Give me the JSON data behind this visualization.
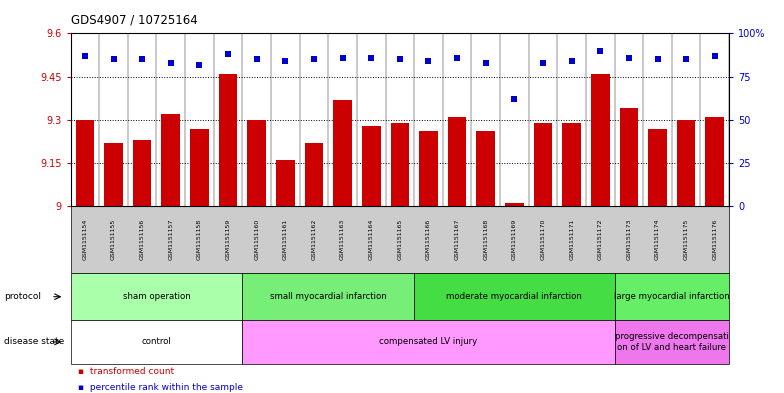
{
  "title": "GDS4907 / 10725164",
  "samples": [
    "GSM1151154",
    "GSM1151155",
    "GSM1151156",
    "GSM1151157",
    "GSM1151158",
    "GSM1151159",
    "GSM1151160",
    "GSM1151161",
    "GSM1151162",
    "GSM1151163",
    "GSM1151164",
    "GSM1151165",
    "GSM1151166",
    "GSM1151167",
    "GSM1151168",
    "GSM1151169",
    "GSM1151170",
    "GSM1151171",
    "GSM1151172",
    "GSM1151173",
    "GSM1151174",
    "GSM1151175",
    "GSM1151176"
  ],
  "bar_values": [
    9.3,
    9.22,
    9.23,
    9.32,
    9.27,
    9.46,
    9.3,
    9.16,
    9.22,
    9.37,
    9.28,
    9.29,
    9.26,
    9.31,
    9.26,
    9.01,
    9.29,
    9.29,
    9.46,
    9.34,
    9.27,
    9.3,
    9.31
  ],
  "percentile_values": [
    87,
    85,
    85,
    83,
    82,
    88,
    85,
    84,
    85,
    86,
    86,
    85,
    84,
    86,
    83,
    62,
    83,
    84,
    90,
    86,
    85,
    85,
    87
  ],
  "bar_color": "#cc0000",
  "percentile_color": "#0000cc",
  "ylim_left": [
    9.0,
    9.6
  ],
  "ylim_right": [
    0,
    100
  ],
  "yticks_left": [
    9.0,
    9.15,
    9.3,
    9.45,
    9.6
  ],
  "yticks_right": [
    0,
    25,
    50,
    75,
    100
  ],
  "ytick_labels_left": [
    "9",
    "9.15",
    "9.3",
    "9.45",
    "9.6"
  ],
  "ytick_labels_right": [
    "0",
    "25",
    "50",
    "75",
    "100%"
  ],
  "dotted_lines": [
    9.15,
    9.3,
    9.45
  ],
  "protocol_spans": [
    {
      "label": "sham operation",
      "start": 0,
      "end": 5,
      "color": "#aaffaa"
    },
    {
      "label": "small myocardial infarction",
      "start": 6,
      "end": 11,
      "color": "#77ee77"
    },
    {
      "label": "moderate myocardial infarction",
      "start": 12,
      "end": 18,
      "color": "#44dd44"
    },
    {
      "label": "large myocardial infarction",
      "start": 19,
      "end": 22,
      "color": "#66ee66"
    }
  ],
  "disease_spans": [
    {
      "label": "control",
      "start": 0,
      "end": 5,
      "color": "#ffffff"
    },
    {
      "label": "compensated LV injury",
      "start": 6,
      "end": 18,
      "color": "#ff99ff"
    },
    {
      "label": "progressive decompensati\non of LV and heart failure",
      "start": 19,
      "end": 22,
      "color": "#ee77ee"
    }
  ],
  "plot_bg": "#ffffff",
  "xtick_bg": "#cccccc",
  "fig_bg": "#ffffff"
}
